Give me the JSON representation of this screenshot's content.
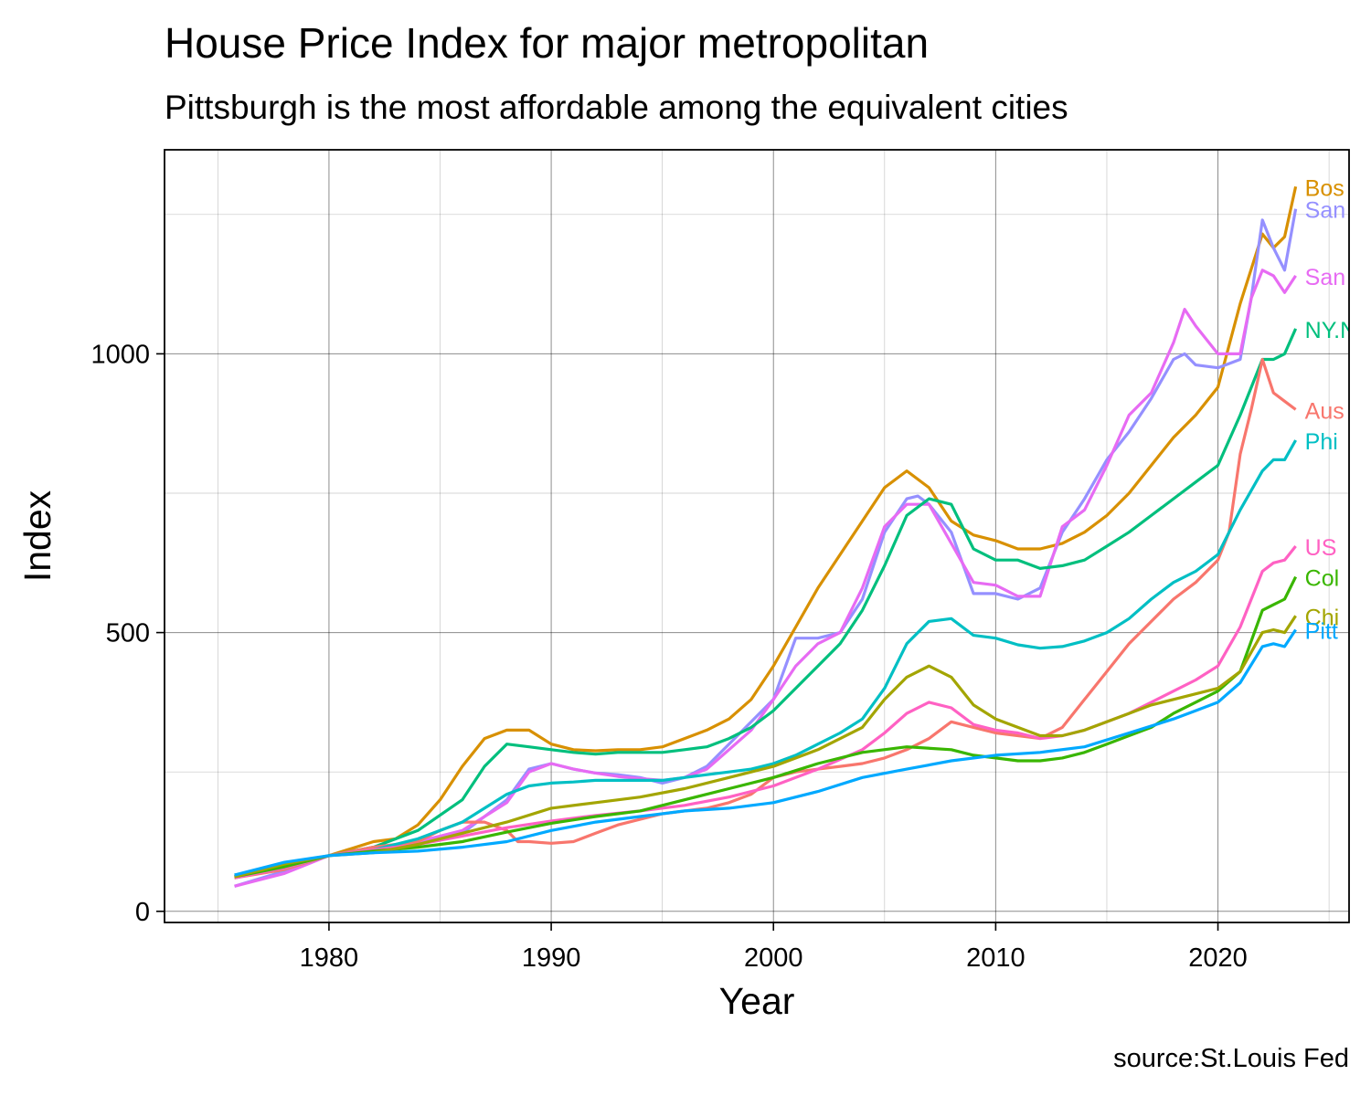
{
  "chart_data": {
    "type": "line",
    "title": "House Price Index for major metropolitan",
    "subtitle": "Pittsburgh is the most affordable among the equivalent cities",
    "xlabel": "Year",
    "ylabel": "Index",
    "caption": "source:St.Louis Fed",
    "xlim": [
      1972.6,
      2025.9
    ],
    "ylim": [
      -20,
      1366
    ],
    "x_ticks": [
      1980,
      1990,
      2000,
      2010,
      2020
    ],
    "y_ticks": [
      0,
      500,
      1000
    ],
    "grid": true,
    "legend": "direct labels at line ends (clipped at right panel edge)",
    "series": [
      {
        "name": "Boston",
        "label": "Bos",
        "color": "#D89000",
        "x": [
          1975.75,
          1978,
          1980,
          1982,
          1983,
          1984,
          1985,
          1986,
          1987,
          1988,
          1989,
          1990,
          1991,
          1992,
          1993,
          1994,
          1995,
          1996,
          1997,
          1998,
          1999,
          2000,
          2001,
          2002,
          2003,
          2004,
          2005,
          2006,
          2007,
          2008,
          2009,
          2010,
          2011,
          2012,
          2013,
          2014,
          2015,
          2016,
          2017,
          2018,
          2019,
          2020,
          2021,
          2022,
          2022.5,
          2023,
          2023.5
        ],
        "y": [
          60,
          78,
          100,
          125,
          130,
          155,
          200,
          260,
          310,
          325,
          325,
          300,
          290,
          288,
          290,
          290,
          295,
          310,
          325,
          345,
          380,
          440,
          510,
          580,
          640,
          700,
          760,
          790,
          760,
          700,
          675,
          665,
          650,
          650,
          660,
          680,
          710,
          750,
          800,
          850,
          890,
          940,
          1090,
          1215,
          1190,
          1210,
          1300
        ]
      },
      {
        "name": "San Francisco",
        "label": "San",
        "color": "#9590FF",
        "x": [
          1975.75,
          1978,
          1980,
          1982,
          1984,
          1986,
          1988,
          1989,
          1990,
          1991,
          1992,
          1993,
          1994,
          1995,
          1996,
          1997,
          1998,
          1999,
          2000,
          2001,
          2002,
          2003,
          2004,
          2005,
          2006,
          2006.5,
          2007,
          2008,
          2009,
          2010,
          2011,
          2012,
          2013,
          2014,
          2015,
          2016,
          2017,
          2018,
          2018.5,
          2019,
          2020,
          2021,
          2021.5,
          2022,
          2022.5,
          2023,
          2023.5
        ],
        "y": [
          45,
          72,
          100,
          115,
          120,
          140,
          200,
          255,
          265,
          255,
          248,
          245,
          240,
          230,
          240,
          260,
          300,
          340,
          380,
          490,
          490,
          500,
          560,
          680,
          740,
          745,
          730,
          680,
          570,
          570,
          560,
          580,
          680,
          740,
          810,
          860,
          920,
          990,
          1000,
          980,
          975,
          990,
          1100,
          1240,
          1190,
          1150,
          1260
        ]
      },
      {
        "name": "San Diego",
        "label": "San",
        "color": "#E76BF3",
        "x": [
          1975.75,
          1978,
          1980,
          1982,
          1984,
          1986,
          1988,
          1989,
          1990,
          1991,
          1992,
          1993,
          1994,
          1995,
          1996,
          1997,
          1998,
          1999,
          2000,
          2001,
          2002,
          2003,
          2004,
          2005,
          2006,
          2007,
          2008,
          2009,
          2010,
          2011,
          2012,
          2013,
          2014,
          2015,
          2016,
          2017,
          2018,
          2018.5,
          2019,
          2020,
          2021,
          2021.5,
          2022,
          2022.5,
          2023,
          2023.5
        ],
        "y": [
          45,
          68,
          100,
          110,
          125,
          145,
          195,
          250,
          265,
          255,
          248,
          242,
          238,
          235,
          240,
          255,
          290,
          325,
          380,
          440,
          480,
          500,
          580,
          690,
          730,
          730,
          660,
          590,
          585,
          565,
          565,
          690,
          720,
          800,
          890,
          930,
          1020,
          1080,
          1050,
          1000,
          1000,
          1100,
          1150,
          1140,
          1110,
          1140
        ]
      },
      {
        "name": "NY",
        "label": "NY.N",
        "color": "#00BF7D",
        "x": [
          1975.75,
          1978,
          1980,
          1982,
          1984,
          1986,
          1987,
          1988,
          1989,
          1990,
          1991,
          1992,
          1993,
          1994,
          1995,
          1996,
          1997,
          1998,
          1999,
          2000,
          2001,
          2002,
          2003,
          2004,
          2005,
          2006,
          2007,
          2008,
          2009,
          2010,
          2011,
          2012,
          2013,
          2014,
          2015,
          2016,
          2017,
          2018,
          2019,
          2020,
          2021,
          2022,
          2022.5,
          2023,
          2023.5
        ],
        "y": [
          65,
          80,
          100,
          115,
          145,
          200,
          260,
          300,
          295,
          290,
          285,
          282,
          285,
          285,
          285,
          290,
          295,
          310,
          330,
          360,
          400,
          440,
          480,
          540,
          620,
          710,
          740,
          730,
          650,
          630,
          630,
          615,
          620,
          630,
          655,
          680,
          710,
          740,
          770,
          800,
          890,
          990,
          990,
          1000,
          1045
        ]
      },
      {
        "name": "Austin",
        "label": "Aus",
        "color": "#F8766D",
        "x": [
          1975.75,
          1978,
          1980,
          1982,
          1984,
          1985,
          1986,
          1987,
          1988,
          1988.5,
          1989,
          1990,
          1991,
          1992,
          1993,
          1994,
          1995,
          1996,
          1997,
          1998,
          1999,
          2000,
          2001,
          2002,
          2003,
          2004,
          2005,
          2006,
          2007,
          2008,
          2009,
          2010,
          2011,
          2012,
          2013,
          2014,
          2015,
          2016,
          2017,
          2018,
          2019,
          2020,
          2020.5,
          2021,
          2021.5,
          2022,
          2022.5,
          2023,
          2023.5
        ],
        "y": [
          60,
          75,
          100,
          115,
          125,
          145,
          160,
          160,
          145,
          125,
          125,
          122,
          125,
          140,
          155,
          165,
          175,
          180,
          185,
          195,
          210,
          240,
          250,
          255,
          260,
          265,
          275,
          290,
          310,
          340,
          330,
          320,
          315,
          310,
          330,
          380,
          430,
          480,
          520,
          560,
          590,
          630,
          680,
          820,
          900,
          990,
          930,
          915,
          900
        ]
      },
      {
        "name": "Philadelphia",
        "label": "Phi",
        "color": "#00BFC4",
        "x": [
          1975.75,
          1978,
          1980,
          1982,
          1984,
          1986,
          1987,
          1988,
          1989,
          1990,
          1991,
          1992,
          1993,
          1994,
          1995,
          1996,
          1997,
          1998,
          1999,
          2000,
          2001,
          2002,
          2003,
          2004,
          2005,
          2006,
          2007,
          2008,
          2009,
          2010,
          2011,
          2012,
          2013,
          2014,
          2015,
          2016,
          2017,
          2018,
          2019,
          2020,
          2021,
          2022,
          2022.5,
          2023,
          2023.5
        ],
        "y": [
          62,
          78,
          100,
          110,
          130,
          160,
          185,
          210,
          225,
          230,
          232,
          235,
          235,
          235,
          235,
          240,
          245,
          250,
          255,
          265,
          280,
          300,
          320,
          345,
          400,
          480,
          520,
          525,
          495,
          490,
          478,
          472,
          475,
          485,
          500,
          525,
          560,
          590,
          610,
          640,
          720,
          790,
          810,
          810,
          845
        ]
      },
      {
        "name": "US",
        "label": "US",
        "color": "#FF61C3",
        "x": [
          1975.75,
          1978,
          1980,
          1982,
          1984,
          1986,
          1988,
          1990,
          1992,
          1994,
          1996,
          1998,
          2000,
          2002,
          2004,
          2005,
          2006,
          2007,
          2008,
          2009,
          2010,
          2011,
          2012,
          2013,
          2014,
          2015,
          2016,
          2017,
          2018,
          2019,
          2020,
          2021,
          2022,
          2022.5,
          2023,
          2023.5
        ],
        "y": [
          60,
          78,
          100,
          110,
          120,
          135,
          150,
          162,
          172,
          180,
          190,
          205,
          225,
          255,
          290,
          320,
          355,
          375,
          365,
          335,
          325,
          320,
          310,
          315,
          325,
          340,
          355,
          375,
          395,
          415,
          440,
          510,
          610,
          625,
          630,
          655
        ]
      },
      {
        "name": "Columbus",
        "label": "Col",
        "color": "#39B600",
        "x": [
          1975.75,
          1978,
          1980,
          1982,
          1984,
          1986,
          1988,
          1990,
          1992,
          1994,
          1996,
          1998,
          2000,
          2002,
          2004,
          2006,
          2008,
          2009,
          2010,
          2011,
          2012,
          2013,
          2014,
          2015,
          2016,
          2017,
          2018,
          2019,
          2020,
          2021,
          2022,
          2022.5,
          2023,
          2023.5
        ],
        "y": [
          62,
          80,
          100,
          108,
          115,
          125,
          142,
          158,
          170,
          180,
          200,
          220,
          240,
          265,
          285,
          295,
          290,
          280,
          275,
          270,
          270,
          275,
          285,
          300,
          315,
          330,
          355,
          375,
          395,
          430,
          540,
          550,
          560,
          600
        ]
      },
      {
        "name": "Chicago",
        "label": "Chi",
        "color": "#A3A500",
        "x": [
          1975.75,
          1978,
          1980,
          1982,
          1984,
          1986,
          1988,
          1990,
          1992,
          1994,
          1996,
          1998,
          2000,
          2002,
          2004,
          2005,
          2006,
          2007,
          2008,
          2009,
          2010,
          2011,
          2012,
          2013,
          2014,
          2015,
          2016,
          2017,
          2018,
          2019,
          2020,
          2021,
          2022,
          2022.5,
          2023,
          2023.5
        ],
        "y": [
          62,
          85,
          100,
          105,
          120,
          140,
          160,
          185,
          195,
          205,
          220,
          240,
          260,
          290,
          330,
          380,
          420,
          440,
          420,
          370,
          345,
          330,
          315,
          315,
          325,
          340,
          355,
          370,
          380,
          390,
          400,
          430,
          500,
          505,
          500,
          530
        ]
      },
      {
        "name": "Pittsburgh",
        "label": "Pitt",
        "color": "#00A9FF",
        "x": [
          1975.75,
          1978,
          1980,
          1982,
          1984,
          1986,
          1988,
          1990,
          1992,
          1994,
          1996,
          1998,
          2000,
          2002,
          2004,
          2006,
          2008,
          2010,
          2012,
          2014,
          2016,
          2018,
          2019,
          2020,
          2021,
          2022,
          2022.5,
          2023,
          2023.5
        ],
        "y": [
          65,
          88,
          100,
          105,
          108,
          115,
          125,
          145,
          160,
          170,
          180,
          185,
          195,
          215,
          240,
          255,
          270,
          280,
          285,
          295,
          320,
          345,
          360,
          375,
          410,
          475,
          480,
          475,
          505
        ]
      }
    ]
  }
}
